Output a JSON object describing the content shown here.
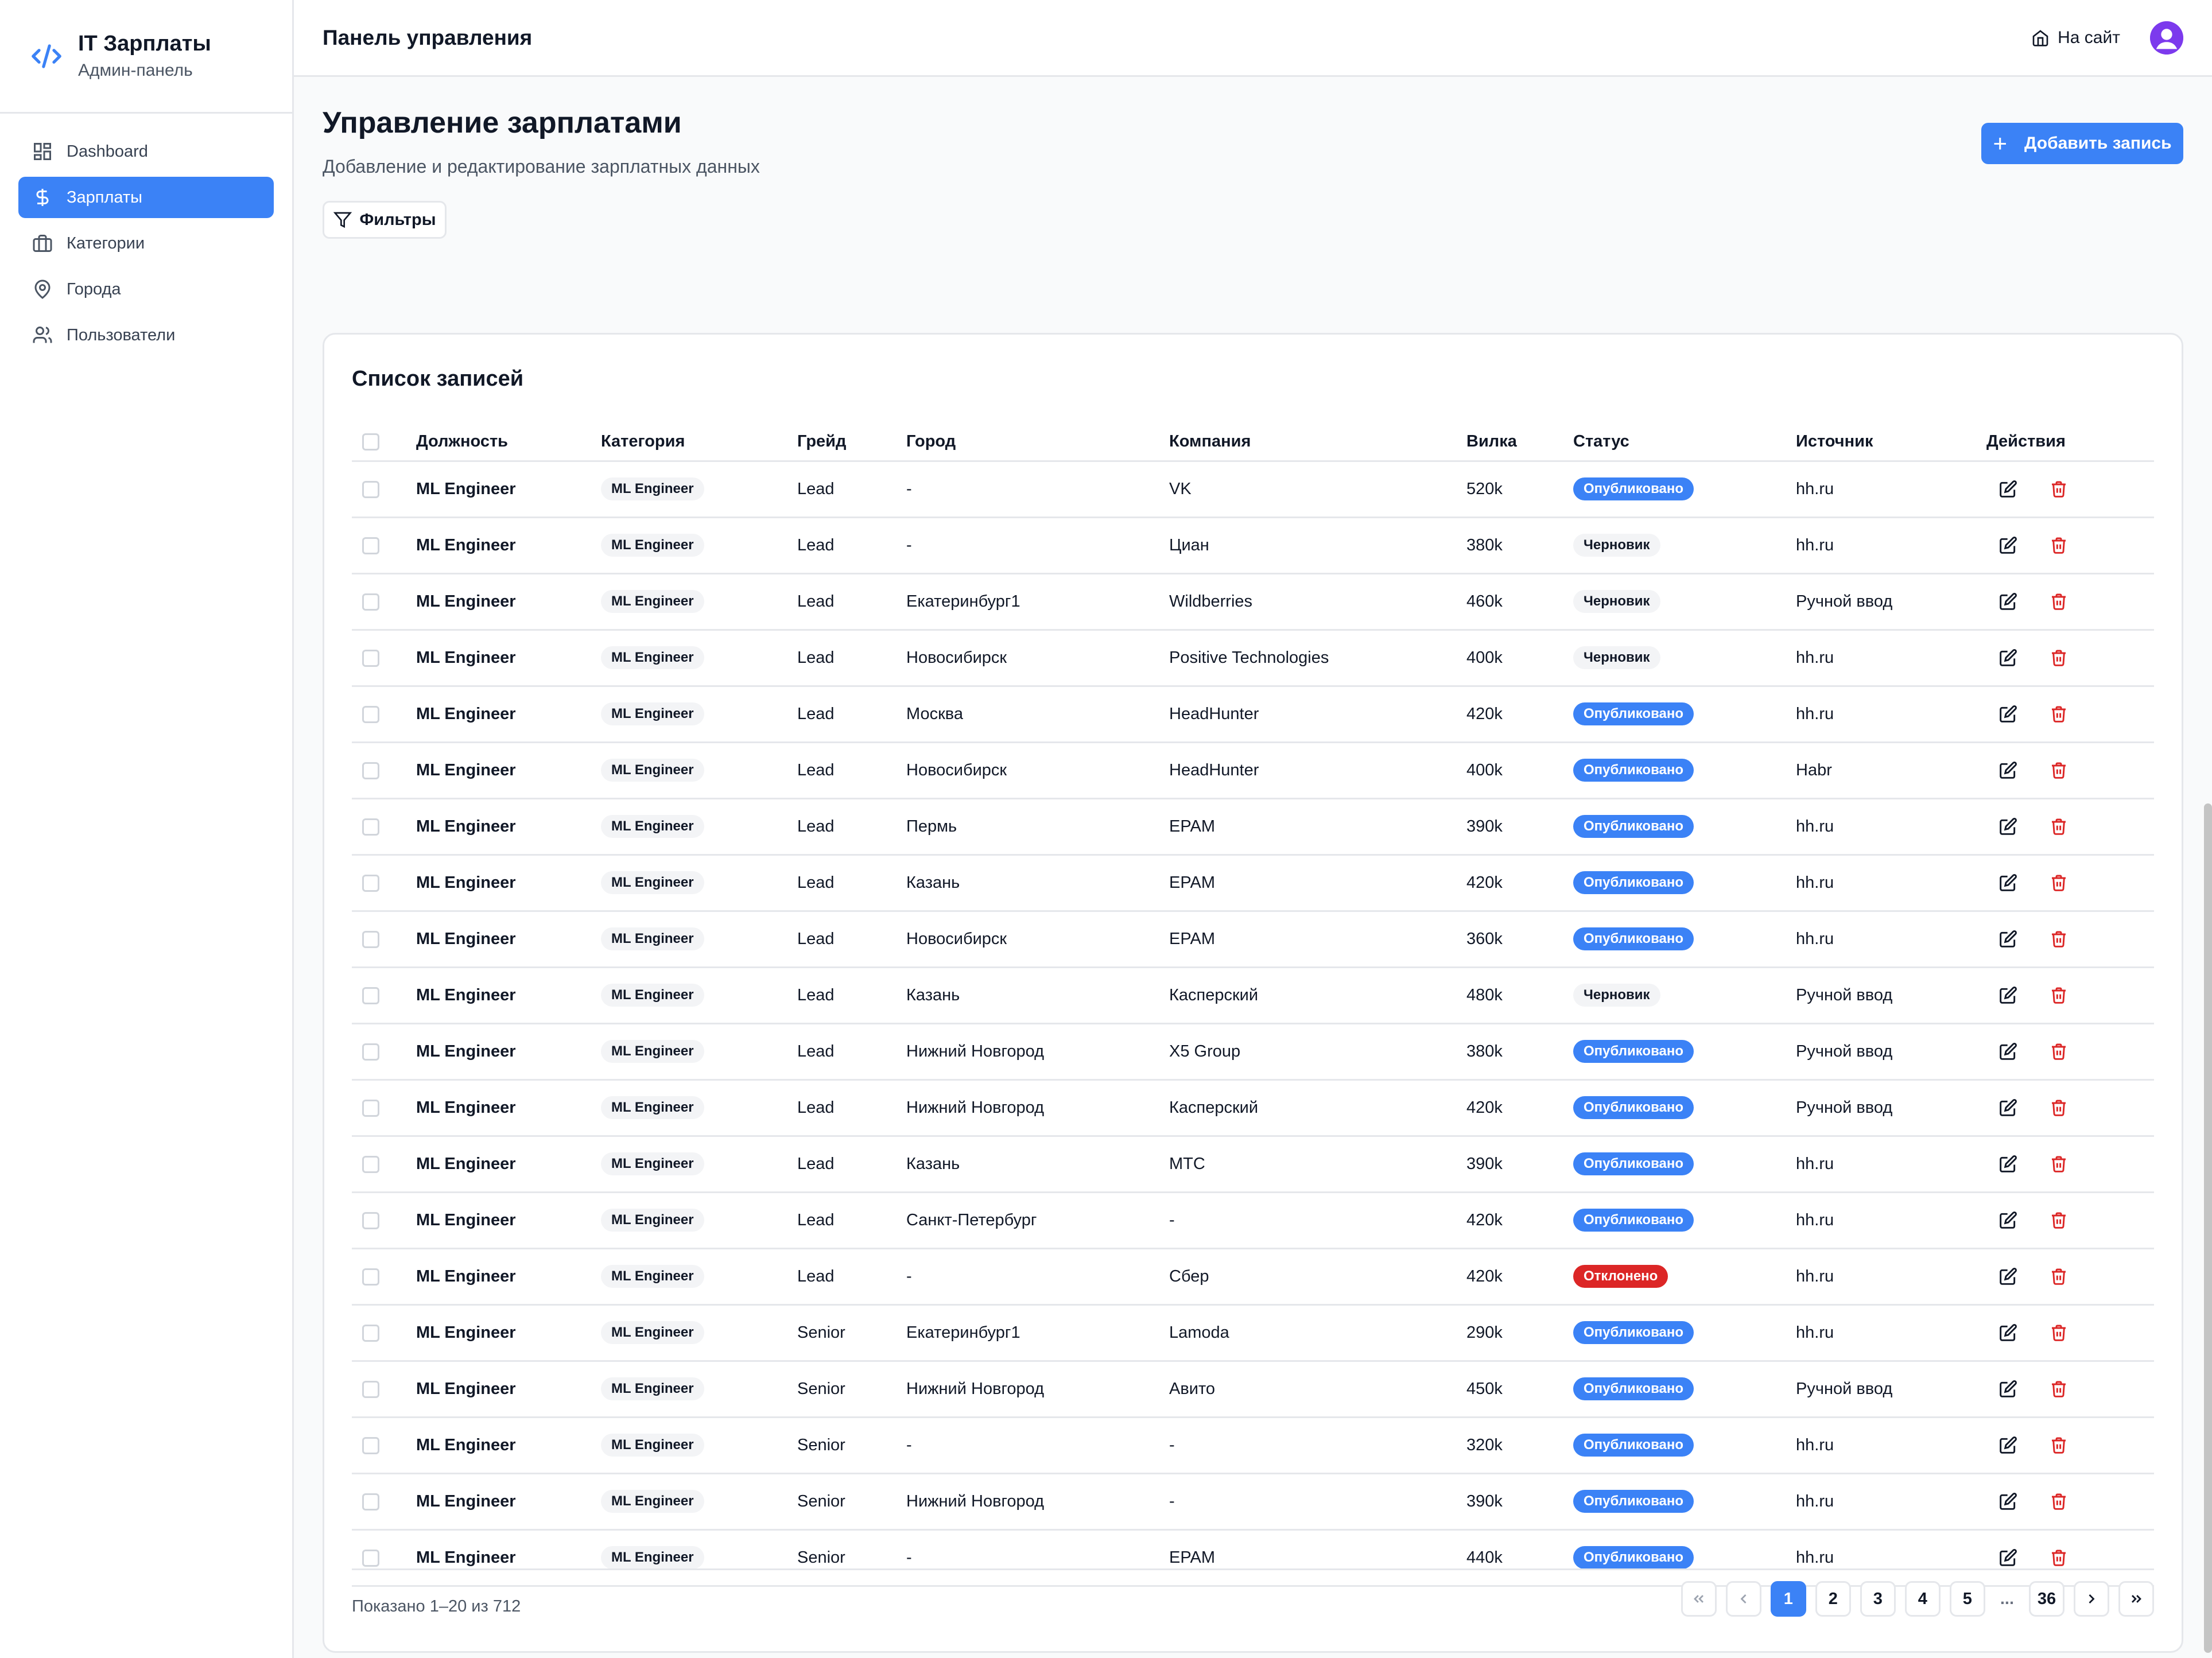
{
  "brand": {
    "title": "IT Зарплаты",
    "subtitle": "Админ-панель",
    "icon": "code-icon"
  },
  "sidebar": {
    "items": [
      {
        "label": "Dashboard",
        "icon": "dashboard-icon",
        "active": false
      },
      {
        "label": "Зарплаты",
        "icon": "dollar-icon",
        "active": true
      },
      {
        "label": "Категории",
        "icon": "briefcase-icon",
        "active": false
      },
      {
        "label": "Города",
        "icon": "map-pin-icon",
        "active": false
      },
      {
        "label": "Пользователи",
        "icon": "users-icon",
        "active": false
      }
    ]
  },
  "topbar": {
    "title": "Панель управления",
    "site_link": "На сайт"
  },
  "page": {
    "title": "Управление зарплатами",
    "subtitle": "Добавление и редактирование зарплатных данных",
    "add_button": "Добавить запись",
    "filters_button": "Фильтры"
  },
  "table": {
    "title": "Список записей",
    "columns": [
      "Должность",
      "Категория",
      "Грейд",
      "Город",
      "Компания",
      "Вилка",
      "Статус",
      "Источник",
      "Действия"
    ],
    "rows": [
      {
        "position": "ML Engineer",
        "category": "ML Engineer",
        "grade": "Lead",
        "city": "-",
        "company": "VK",
        "fork": "520k",
        "status": "Опубликовано",
        "status_type": "pub",
        "source": "hh.ru"
      },
      {
        "position": "ML Engineer",
        "category": "ML Engineer",
        "grade": "Lead",
        "city": "-",
        "company": "Циан",
        "fork": "380k",
        "status": "Черновик",
        "status_type": "draft",
        "source": "hh.ru"
      },
      {
        "position": "ML Engineer",
        "category": "ML Engineer",
        "grade": "Lead",
        "city": "Екатеринбург1",
        "company": "Wildberries",
        "fork": "460k",
        "status": "Черновик",
        "status_type": "draft",
        "source": "Ручной ввод"
      },
      {
        "position": "ML Engineer",
        "category": "ML Engineer",
        "grade": "Lead",
        "city": "Новосибирск",
        "company": "Positive Technologies",
        "fork": "400k",
        "status": "Черновик",
        "status_type": "draft",
        "source": "hh.ru"
      },
      {
        "position": "ML Engineer",
        "category": "ML Engineer",
        "grade": "Lead",
        "city": "Москва",
        "company": "HeadHunter",
        "fork": "420k",
        "status": "Опубликовано",
        "status_type": "pub",
        "source": "hh.ru"
      },
      {
        "position": "ML Engineer",
        "category": "ML Engineer",
        "grade": "Lead",
        "city": "Новосибирск",
        "company": "HeadHunter",
        "fork": "400k",
        "status": "Опубликовано",
        "status_type": "pub",
        "source": "Habr"
      },
      {
        "position": "ML Engineer",
        "category": "ML Engineer",
        "grade": "Lead",
        "city": "Пермь",
        "company": "EPAM",
        "fork": "390k",
        "status": "Опубликовано",
        "status_type": "pub",
        "source": "hh.ru"
      },
      {
        "position": "ML Engineer",
        "category": "ML Engineer",
        "grade": "Lead",
        "city": "Казань",
        "company": "EPAM",
        "fork": "420k",
        "status": "Опубликовано",
        "status_type": "pub",
        "source": "hh.ru"
      },
      {
        "position": "ML Engineer",
        "category": "ML Engineer",
        "grade": "Lead",
        "city": "Новосибирск",
        "company": "EPAM",
        "fork": "360k",
        "status": "Опубликовано",
        "status_type": "pub",
        "source": "hh.ru"
      },
      {
        "position": "ML Engineer",
        "category": "ML Engineer",
        "grade": "Lead",
        "city": "Казань",
        "company": "Касперский",
        "fork": "480k",
        "status": "Черновик",
        "status_type": "draft",
        "source": "Ручной ввод"
      },
      {
        "position": "ML Engineer",
        "category": "ML Engineer",
        "grade": "Lead",
        "city": "Нижний Новгород",
        "company": "X5 Group",
        "fork": "380k",
        "status": "Опубликовано",
        "status_type": "pub",
        "source": "Ручной ввод"
      },
      {
        "position": "ML Engineer",
        "category": "ML Engineer",
        "grade": "Lead",
        "city": "Нижний Новгород",
        "company": "Касперский",
        "fork": "420k",
        "status": "Опубликовано",
        "status_type": "pub",
        "source": "Ручной ввод"
      },
      {
        "position": "ML Engineer",
        "category": "ML Engineer",
        "grade": "Lead",
        "city": "Казань",
        "company": "МТС",
        "fork": "390k",
        "status": "Опубликовано",
        "status_type": "pub",
        "source": "hh.ru"
      },
      {
        "position": "ML Engineer",
        "category": "ML Engineer",
        "grade": "Lead",
        "city": "Санкт-Петербург",
        "company": "-",
        "fork": "420k",
        "status": "Опубликовано",
        "status_type": "pub",
        "source": "hh.ru"
      },
      {
        "position": "ML Engineer",
        "category": "ML Engineer",
        "grade": "Lead",
        "city": "-",
        "company": "Сбер",
        "fork": "420k",
        "status": "Отклонено",
        "status_type": "rej",
        "source": "hh.ru"
      },
      {
        "position": "ML Engineer",
        "category": "ML Engineer",
        "grade": "Senior",
        "city": "Екатеринбург1",
        "company": "Lamoda",
        "fork": "290k",
        "status": "Опубликовано",
        "status_type": "pub",
        "source": "hh.ru"
      },
      {
        "position": "ML Engineer",
        "category": "ML Engineer",
        "grade": "Senior",
        "city": "Нижний Новгород",
        "company": "Авито",
        "fork": "450k",
        "status": "Опубликовано",
        "status_type": "pub",
        "source": "Ручной ввод"
      },
      {
        "position": "ML Engineer",
        "category": "ML Engineer",
        "grade": "Senior",
        "city": "-",
        "company": "-",
        "fork": "320k",
        "status": "Опубликовано",
        "status_type": "pub",
        "source": "hh.ru"
      },
      {
        "position": "ML Engineer",
        "category": "ML Engineer",
        "grade": "Senior",
        "city": "Нижний Новгород",
        "company": "-",
        "fork": "390k",
        "status": "Опубликовано",
        "status_type": "pub",
        "source": "hh.ru"
      },
      {
        "position": "ML Engineer",
        "category": "ML Engineer",
        "grade": "Senior",
        "city": "-",
        "company": "EPAM",
        "fork": "440k",
        "status": "Опубликовано",
        "status_type": "pub",
        "source": "hh.ru"
      }
    ]
  },
  "pagination": {
    "info": "Показано 1–20 из 712",
    "pages": [
      "1",
      "2",
      "3",
      "4",
      "5"
    ],
    "ellipsis": "...",
    "last_page": "36",
    "current": "1"
  },
  "colors": {
    "accent": "#3b82f6",
    "danger": "#dc2626",
    "avatar": "#7c3aed"
  }
}
